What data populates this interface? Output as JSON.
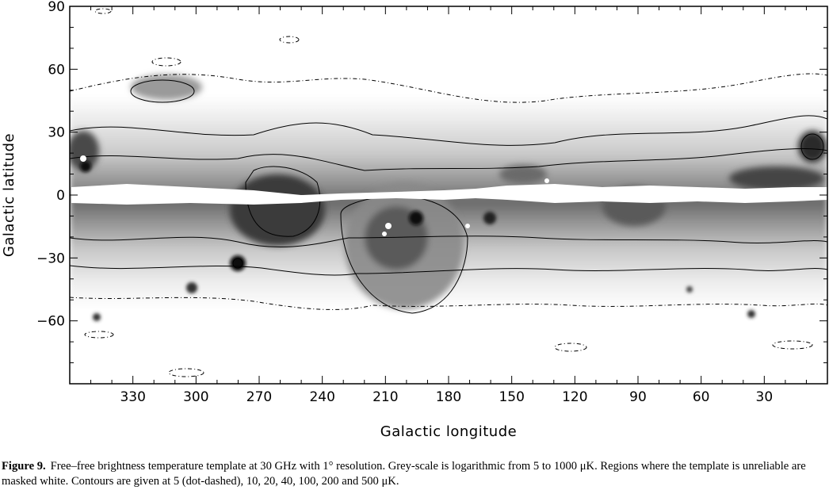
{
  "chart_data": {
    "type": "heatmap",
    "projection": "Cartesian (plate carrée) all-sky map, longitude increasing to the left",
    "xlabel": "Galactic longitude",
    "ylabel": "Galactic latitude",
    "xlim": [
      360,
      0
    ],
    "ylim": [
      -90,
      90
    ],
    "x_ticks": [
      330,
      300,
      270,
      240,
      210,
      180,
      150,
      120,
      90,
      60,
      30
    ],
    "y_ticks": [
      90,
      60,
      30,
      0,
      -30,
      -60
    ],
    "y_tick_labels": [
      "90",
      "60",
      "30",
      "0",
      "−30",
      "−60"
    ],
    "colorscale": "grey, logarithmic",
    "scale_range_uK": [
      5,
      1000
    ],
    "contour_levels_uK": [
      5,
      10,
      20,
      40,
      100,
      200,
      500
    ],
    "contour_5_style": "dot-dashed",
    "masked_color": "#ffffff",
    "grid": false
  },
  "caption": {
    "label": "Figure 9.",
    "text": "Free–free brightness temperature template at 30 GHz with 1° resolution. Grey-scale is logarithmic from 5 to 1000 μK. Regions where the template is unreliable are masked white. Contours are given at 5 (dot-dashed), 10, 20, 40, 100, 200 and 500 μK."
  }
}
